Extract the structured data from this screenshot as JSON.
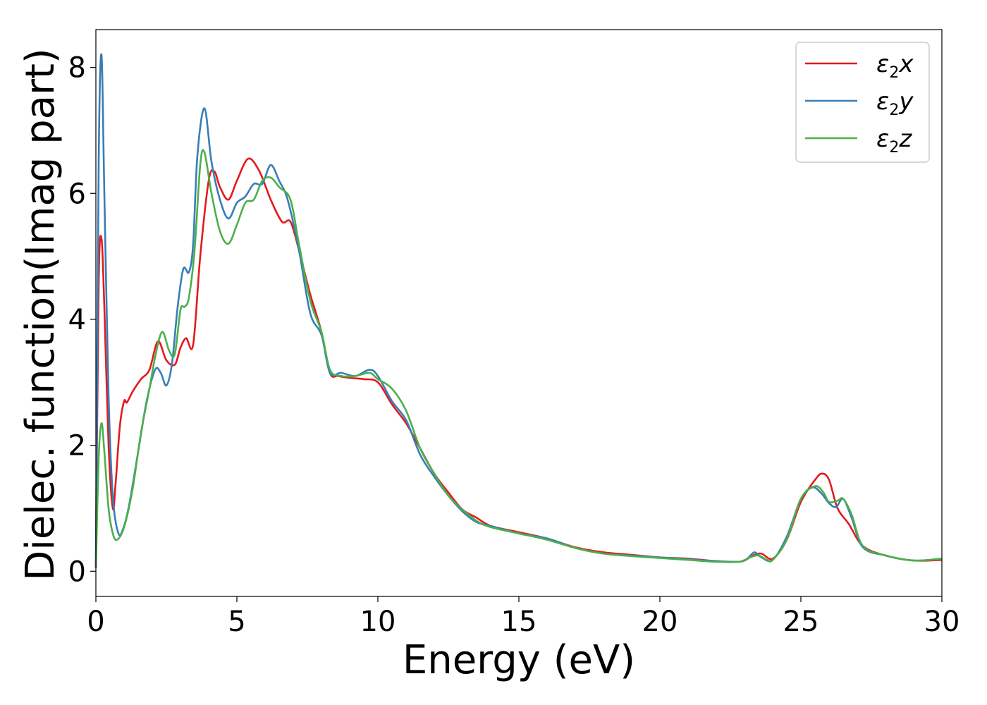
{
  "chart_data": {
    "type": "line",
    "xlabel": "Energy (eV)",
    "ylabel": "Dielec. function(Imag part)",
    "xlim": [
      0,
      30
    ],
    "ylim": [
      -0.4,
      8.6
    ],
    "xticks": [
      0,
      5,
      10,
      15,
      20,
      25,
      30
    ],
    "yticks": [
      0,
      2,
      4,
      6,
      8
    ],
    "legend_position": "top-right",
    "grid": false,
    "series": [
      {
        "name": "ε2x",
        "label_base": "ε",
        "label_sub": "2",
        "label_suffix": "x",
        "color": "#e41a1c",
        "x": [
          0,
          0.1,
          0.2,
          0.3,
          0.45,
          0.6,
          0.7,
          0.85,
          1.0,
          1.1,
          1.3,
          1.6,
          1.9,
          2.2,
          2.5,
          2.8,
          3.0,
          3.2,
          3.45,
          3.7,
          4.0,
          4.2,
          4.4,
          4.7,
          5.0,
          5.4,
          5.8,
          6.2,
          6.6,
          6.9,
          7.2,
          7.6,
          8.0,
          8.3,
          8.6,
          9.0,
          9.5,
          10.0,
          10.5,
          11.0,
          11.5,
          12.0,
          12.5,
          13.0,
          13.5,
          14.0,
          15.0,
          16.0,
          17.0,
          18.0,
          19.0,
          20.0,
          21.0,
          22.0,
          22.7,
          23.0,
          23.3,
          23.6,
          24.0,
          24.5,
          25.0,
          25.5,
          25.75,
          26.0,
          26.3,
          26.7,
          27.2,
          28.0,
          29.0,
          30.0
        ],
        "y": [
          0.05,
          4.6,
          5.28,
          4.2,
          2.0,
          1.0,
          1.4,
          2.3,
          2.7,
          2.68,
          2.85,
          3.05,
          3.2,
          3.65,
          3.35,
          3.28,
          3.55,
          3.7,
          3.6,
          5.0,
          6.2,
          6.35,
          6.1,
          5.9,
          6.2,
          6.55,
          6.35,
          5.9,
          5.55,
          5.55,
          5.1,
          4.4,
          3.8,
          3.15,
          3.1,
          3.07,
          3.05,
          3.0,
          2.65,
          2.35,
          1.95,
          1.55,
          1.25,
          0.98,
          0.85,
          0.72,
          0.62,
          0.52,
          0.38,
          0.3,
          0.26,
          0.22,
          0.2,
          0.16,
          0.15,
          0.17,
          0.25,
          0.28,
          0.2,
          0.5,
          1.1,
          1.45,
          1.55,
          1.45,
          1.0,
          0.75,
          0.4,
          0.25,
          0.17,
          0.18
        ]
      },
      {
        "name": "ε2y",
        "label_base": "ε",
        "label_sub": "2",
        "label_suffix": "y",
        "color": "#377eb8",
        "x": [
          0,
          0.1,
          0.2,
          0.3,
          0.45,
          0.6,
          0.8,
          1.0,
          1.2,
          1.5,
          1.8,
          2.1,
          2.3,
          2.5,
          2.7,
          2.9,
          3.1,
          3.3,
          3.45,
          3.6,
          3.85,
          4.1,
          4.4,
          4.7,
          5.0,
          5.3,
          5.6,
          5.9,
          6.2,
          6.5,
          6.8,
          7.2,
          7.6,
          8.0,
          8.3,
          8.7,
          9.2,
          9.7,
          10.0,
          10.5,
          11.0,
          11.5,
          12.0,
          12.5,
          13.0,
          13.5,
          14.0,
          15.0,
          16.0,
          17.0,
          18.0,
          19.0,
          20.0,
          21.0,
          22.0,
          22.8,
          23.1,
          23.35,
          23.6,
          24.0,
          24.5,
          25.0,
          25.4,
          25.7,
          26.0,
          26.25,
          26.5,
          26.8,
          27.2,
          28.0,
          29.0,
          30.0
        ],
        "y": [
          0.05,
          6.5,
          8.2,
          6.0,
          2.8,
          1.2,
          0.6,
          0.72,
          1.1,
          1.9,
          2.7,
          3.2,
          3.15,
          2.95,
          3.3,
          4.2,
          4.8,
          4.75,
          5.2,
          6.6,
          7.35,
          6.5,
          5.9,
          5.6,
          5.85,
          5.95,
          6.15,
          6.15,
          6.45,
          6.2,
          5.9,
          5.1,
          4.1,
          3.75,
          3.15,
          3.15,
          3.1,
          3.2,
          3.1,
          2.7,
          2.4,
          1.85,
          1.5,
          1.2,
          0.95,
          0.78,
          0.72,
          0.6,
          0.52,
          0.37,
          0.28,
          0.25,
          0.22,
          0.19,
          0.16,
          0.15,
          0.2,
          0.3,
          0.22,
          0.18,
          0.55,
          1.15,
          1.33,
          1.25,
          1.08,
          1.02,
          1.15,
          0.85,
          0.38,
          0.25,
          0.17,
          0.2
        ]
      },
      {
        "name": "ε2z",
        "label_base": "ε",
        "label_sub": "2",
        "label_suffix": "z",
        "color": "#4daf4a",
        "x": [
          0,
          0.1,
          0.2,
          0.3,
          0.45,
          0.6,
          0.75,
          1.0,
          1.3,
          1.6,
          1.9,
          2.1,
          2.35,
          2.6,
          2.8,
          3.0,
          3.15,
          3.3,
          3.5,
          3.7,
          3.85,
          4.1,
          4.4,
          4.7,
          5.0,
          5.3,
          5.6,
          5.9,
          6.2,
          6.5,
          6.9,
          7.2,
          7.6,
          8.0,
          8.3,
          8.7,
          9.2,
          9.7,
          10.0,
          10.5,
          11.0,
          11.5,
          12.0,
          12.5,
          13.0,
          13.5,
          14.0,
          15.0,
          16.0,
          17.0,
          18.0,
          19.0,
          20.0,
          21.0,
          22.0,
          22.8,
          23.2,
          23.5,
          23.8,
          24.0,
          24.5,
          25.0,
          25.5,
          25.8,
          26.0,
          26.3,
          26.5,
          26.8,
          27.2,
          28.0,
          29.0,
          30.0
        ],
        "y": [
          0.05,
          1.8,
          2.35,
          1.9,
          1.0,
          0.6,
          0.5,
          0.7,
          1.3,
          2.2,
          2.9,
          3.4,
          3.8,
          3.5,
          3.45,
          4.15,
          4.2,
          4.35,
          5.1,
          6.45,
          6.65,
          6.0,
          5.4,
          5.2,
          5.5,
          5.85,
          5.9,
          6.2,
          6.25,
          6.1,
          5.9,
          5.2,
          4.3,
          3.8,
          3.2,
          3.1,
          3.1,
          3.15,
          3.05,
          2.9,
          2.55,
          1.95,
          1.55,
          1.2,
          0.98,
          0.8,
          0.7,
          0.6,
          0.5,
          0.37,
          0.28,
          0.24,
          0.21,
          0.18,
          0.15,
          0.15,
          0.22,
          0.25,
          0.18,
          0.18,
          0.5,
          1.15,
          1.35,
          1.25,
          1.1,
          1.12,
          1.15,
          0.9,
          0.4,
          0.25,
          0.17,
          0.2
        ]
      }
    ]
  }
}
